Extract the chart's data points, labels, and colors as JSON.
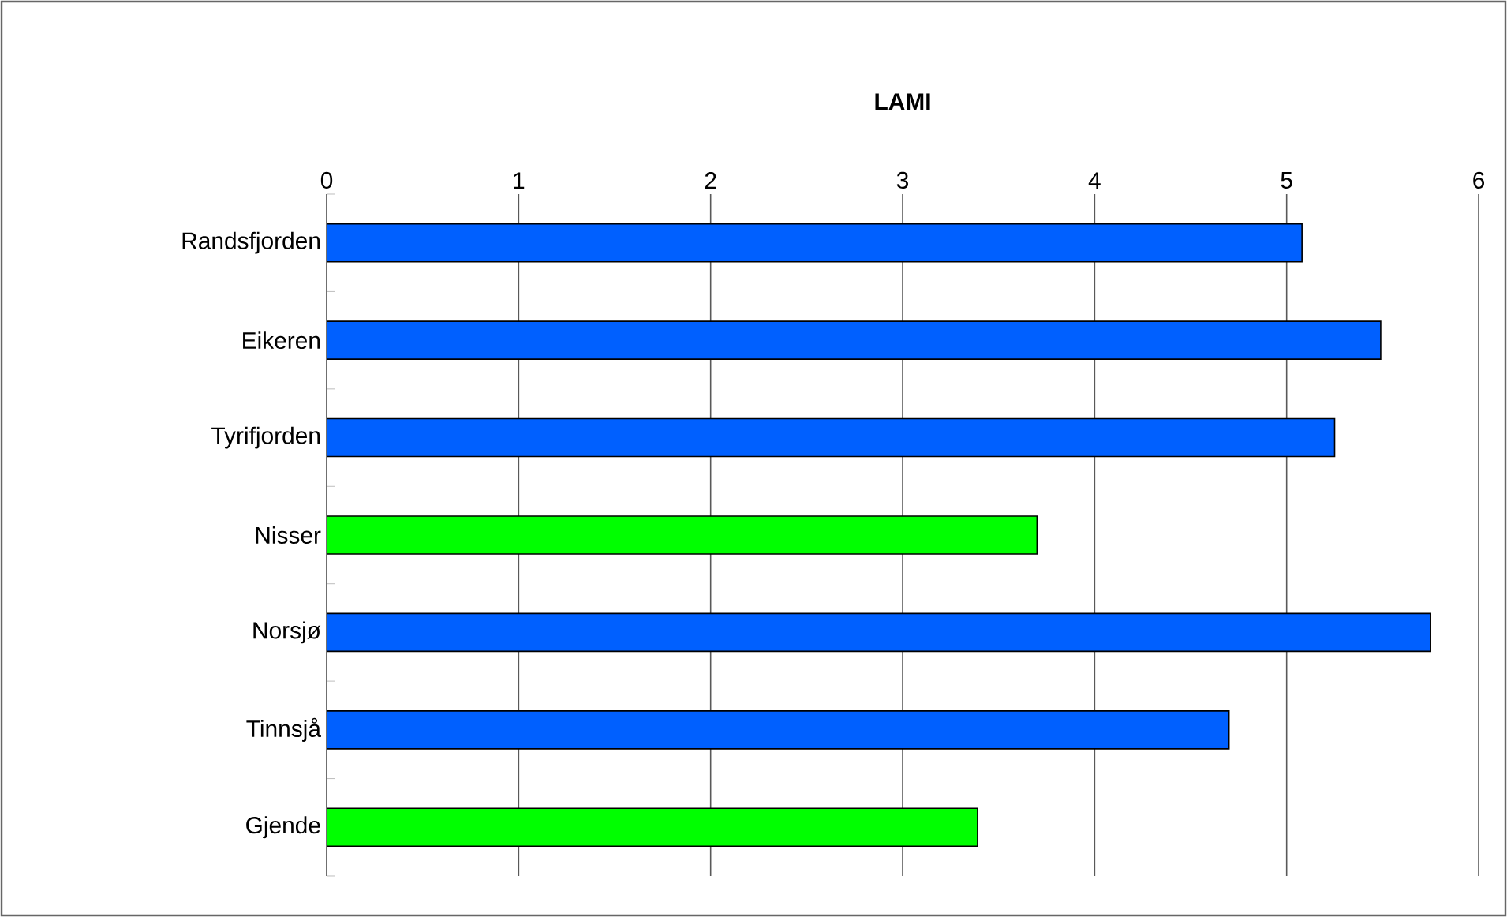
{
  "chart_data": {
    "type": "bar",
    "orientation": "horizontal",
    "title": "LAMI",
    "categories": [
      "Randsfjorden",
      "Eikeren",
      "Tyrifjorden",
      "Nisser",
      "Norsjø",
      "Tinnsjå",
      "Gjende"
    ],
    "values": [
      5.08,
      5.49,
      5.25,
      3.7,
      5.75,
      4.7,
      3.39
    ],
    "colors": [
      "#0060ff",
      "#0060ff",
      "#0060ff",
      "#00ff00",
      "#0060ff",
      "#0060ff",
      "#00ff00"
    ],
    "xlim": [
      0,
      6
    ],
    "xticks": [
      0,
      1,
      2,
      3,
      4,
      5,
      6
    ],
    "grid": "x"
  }
}
